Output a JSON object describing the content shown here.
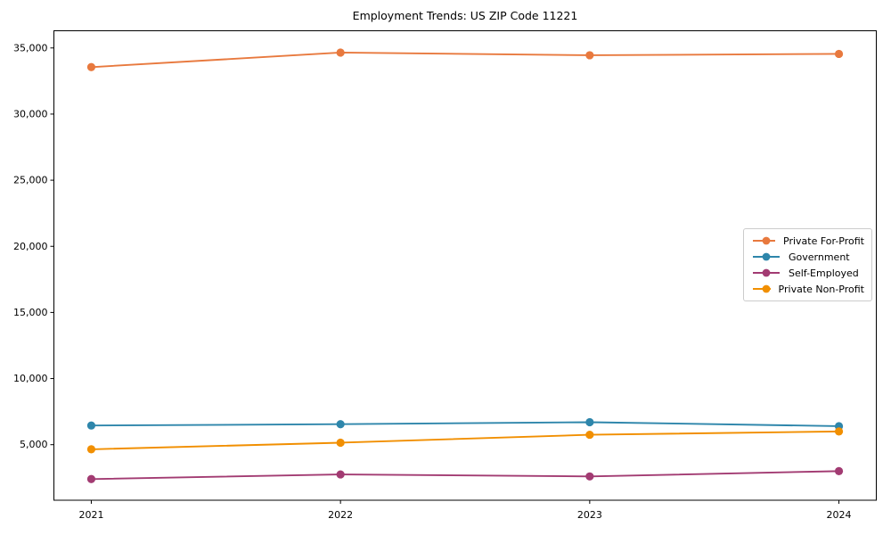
{
  "chart_data": {
    "type": "line",
    "title": "Employment Trends: US ZIP Code 11221",
    "categories": [
      "2021",
      "2022",
      "2023",
      "2024"
    ],
    "series": [
      {
        "name": "Private For-Profit",
        "color": "#E8793E",
        "values": [
          33550,
          34650,
          34450,
          34550
        ]
      },
      {
        "name": "Government",
        "color": "#2E86AB",
        "values": [
          6450,
          6550,
          6700,
          6400
        ]
      },
      {
        "name": "Self-Employed",
        "color": "#A23B72",
        "values": [
          2400,
          2750,
          2600,
          3000
        ]
      },
      {
        "name": "Private Non-Profit",
        "color": "#F18F01",
        "values": [
          4650,
          5150,
          5750,
          6000
        ]
      }
    ],
    "xlabel": "",
    "ylabel": "",
    "ylim": [
      800,
      36300
    ],
    "yticks": [
      5000,
      10000,
      15000,
      20000,
      25000,
      30000,
      35000
    ],
    "ytick_format": "comma",
    "grid": false,
    "legend_position": "center right",
    "axis_color": "#000000",
    "background_color": "#ffffff"
  }
}
